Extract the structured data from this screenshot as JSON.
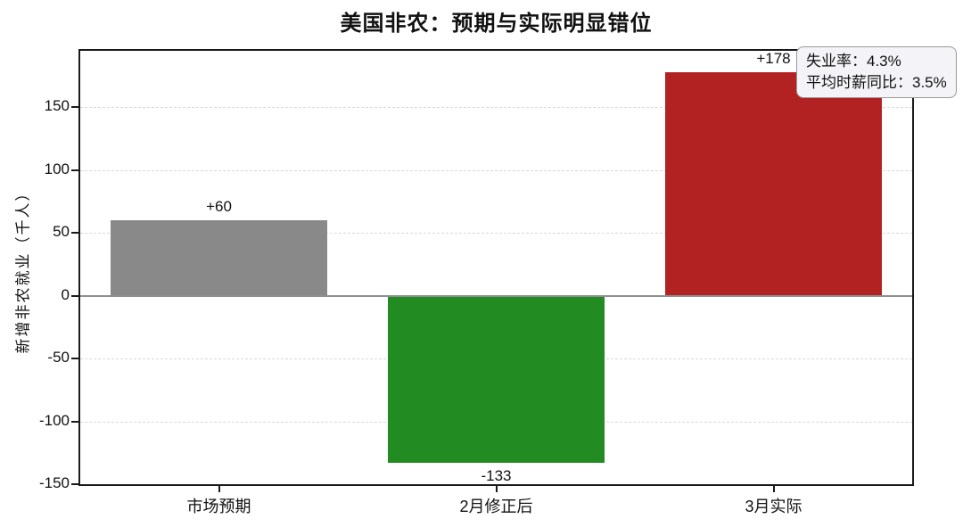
{
  "chart_data": {
    "type": "bar",
    "title": "美国非农：预期与实际明显错位",
    "xlabel": "",
    "ylabel": "新增非农就业（千人）",
    "categories": [
      "市场预期",
      "2月修正后",
      "3月实际"
    ],
    "values": [
      60,
      -133,
      178
    ],
    "value_labels": [
      "+60",
      "-133",
      "+178"
    ],
    "bar_colors": [
      "#898989",
      "#228B22",
      "#B22222"
    ],
    "ylim": [
      -150,
      195
    ],
    "yticks": [
      150,
      100,
      50,
      0,
      -50,
      -100,
      -150
    ],
    "grid": "horizontal-dashed",
    "legend": "none",
    "annotation": {
      "line1": "失业率：4.3%",
      "line2": "平均时薪同比：3.5%"
    }
  }
}
